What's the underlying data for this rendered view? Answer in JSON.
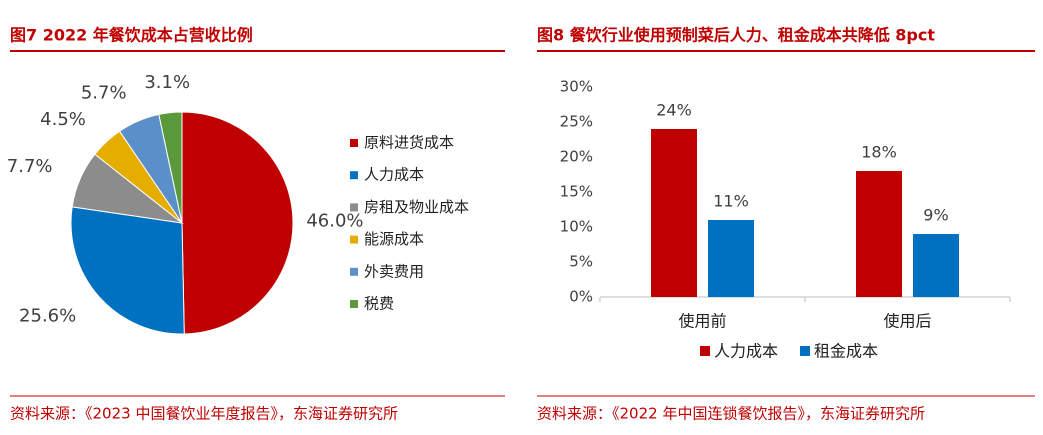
{
  "chart_data": [
    {
      "type": "pie",
      "title": "图7  2022 年餐饮成本占营收比例",
      "categories": [
        "原料进货成本",
        "人力成本",
        "房租及物业成本",
        "能源成本",
        "外卖费用",
        "税费"
      ],
      "values": [
        46.0,
        25.6,
        7.7,
        4.5,
        5.7,
        3.1
      ],
      "value_labels": [
        "46.0%",
        "25.6%",
        "7.7%",
        "4.5%",
        "5.7%",
        "3.1%"
      ],
      "colors": [
        "#c00000",
        "#0070c0",
        "#8c8c8c",
        "#e5ad00",
        "#5b8fc9",
        "#5a9a3c"
      ],
      "source": "资料来源：《2023 中国餐饮业年度报告》，东海证券研究所"
    },
    {
      "type": "bar",
      "title": "图8  餐饮行业使用预制菜后人力、租金成本共降低 8pct",
      "categories": [
        "使用前",
        "使用后"
      ],
      "series": [
        {
          "name": "人力成本",
          "color": "#c00000",
          "values": [
            24,
            18
          ],
          "value_labels": [
            "24%",
            "18%"
          ]
        },
        {
          "name": "租金成本",
          "color": "#0070c0",
          "values": [
            11,
            9
          ],
          "value_labels": [
            "11%",
            "9%"
          ]
        }
      ],
      "ylim": [
        0,
        30
      ],
      "yticks": [
        {
          "value": 0,
          "label": "0%"
        },
        {
          "value": 5,
          "label": "5%"
        },
        {
          "value": 10,
          "label": "10%"
        },
        {
          "value": 15,
          "label": "15%"
        },
        {
          "value": 20,
          "label": "20%"
        },
        {
          "value": 25,
          "label": "25%"
        },
        {
          "value": 30,
          "label": "30%"
        }
      ],
      "source": "资料来源：《2022 年中国连锁餐饮报告》，东海证券研究所"
    }
  ]
}
